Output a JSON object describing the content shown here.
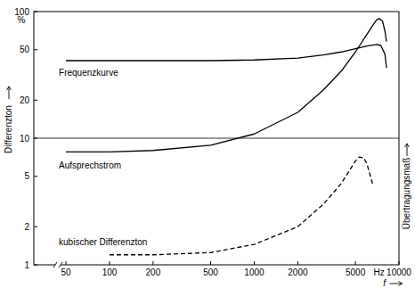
{
  "chart_data": {
    "type": "line",
    "x_label": "f",
    "x_unit": "Hz",
    "y_label": "Differenzton",
    "y_unit": "%",
    "y2_label": "Übertragungsmaß",
    "log": true,
    "grid": true,
    "xlim": [
      30,
      10000
    ],
    "ylim": [
      1,
      100
    ],
    "xticks": [
      50,
      100,
      200,
      500,
      1000,
      2000,
      5000,
      10000
    ],
    "yticks": [
      1,
      2,
      5,
      10,
      20,
      50,
      100
    ],
    "series": [
      {
        "name": "Frequenzkurve",
        "color": "#000000",
        "line_style": "solid",
        "x": [
          50,
          100,
          200,
          500,
          1000,
          2000,
          3000,
          4000,
          5000,
          6000,
          7000,
          7500,
          8000,
          8200
        ],
        "values": [
          41,
          41,
          41,
          41,
          41.5,
          43,
          45.5,
          48,
          51,
          53.5,
          55,
          54,
          46,
          36
        ]
      },
      {
        "name": "Aufsprechstrom",
        "color": "#000000",
        "line_style": "solid",
        "x": [
          50,
          100,
          200,
          500,
          1000,
          2000,
          3000,
          4000,
          5000,
          6000,
          6500,
          7000,
          7300,
          7700,
          8000,
          8200
        ],
        "values": [
          7.8,
          7.8,
          8,
          8.8,
          10.8,
          16,
          24,
          34,
          48,
          66,
          76,
          86,
          88,
          84,
          70,
          58
        ]
      },
      {
        "name": "kubischer Differenzton",
        "color": "#000000",
        "line_style": "dashed",
        "x": [
          100,
          200,
          500,
          1000,
          2000,
          3000,
          4000,
          5000,
          5300,
          5700,
          6000,
          6600
        ],
        "values": [
          1.2,
          1.2,
          1.25,
          1.45,
          2,
          3,
          4.4,
          6.6,
          7.1,
          7,
          6.3,
          4.3
        ]
      }
    ]
  }
}
